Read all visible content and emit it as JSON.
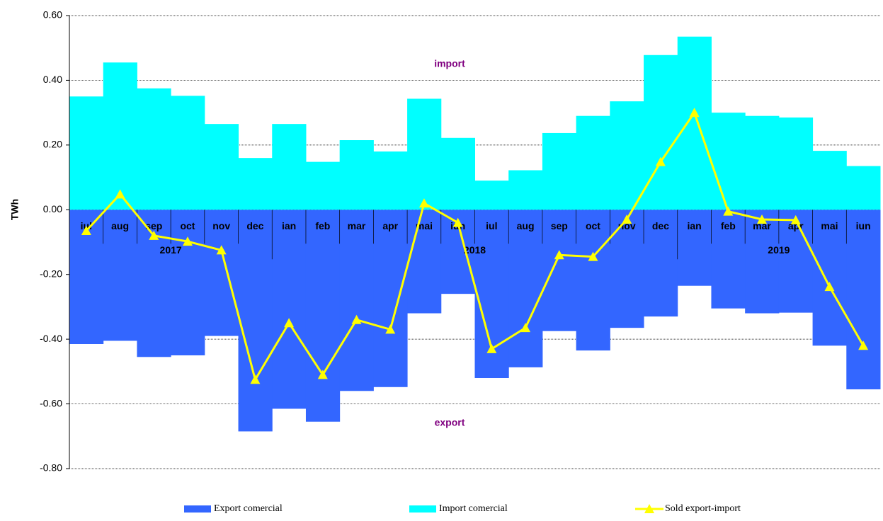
{
  "chart_data": {
    "type": "bar_line",
    "y_label": "TWh",
    "categories": [
      "iul",
      "aug",
      "sep",
      "oct",
      "nov",
      "dec",
      "ian",
      "feb",
      "mar",
      "apr",
      "mai",
      "iun",
      "iul",
      "aug",
      "sep",
      "oct",
      "nov",
      "dec",
      "ian",
      "feb",
      "mar",
      "apr",
      "mai",
      "iun"
    ],
    "category_years": [
      "2017",
      "2017",
      "2017",
      "2017",
      "2017",
      "2017",
      "2018",
      "2018",
      "2018",
      "2018",
      "2018",
      "2018",
      "2018",
      "2018",
      "2018",
      "2018",
      "2018",
      "2018",
      "2019",
      "2019",
      "2019",
      "2019",
      "2019",
      "2019"
    ],
    "series": [
      {
        "name": "Export comercial",
        "color": "#3366ff",
        "kind": "bar",
        "values": [
          -0.415,
          -0.405,
          -0.455,
          -0.45,
          -0.39,
          -0.685,
          -0.615,
          -0.655,
          -0.56,
          -0.548,
          -0.32,
          -0.26,
          -0.52,
          -0.487,
          -0.375,
          -0.435,
          -0.365,
          -0.33,
          -0.235,
          -0.305,
          -0.32,
          -0.318,
          -0.42,
          -0.555
        ]
      },
      {
        "name": "Import comercial",
        "color": "#00ffff",
        "kind": "bar",
        "values": [
          0.35,
          0.455,
          0.375,
          0.352,
          0.265,
          0.16,
          0.265,
          0.148,
          0.215,
          0.18,
          0.343,
          0.222,
          0.09,
          0.122,
          0.237,
          0.29,
          0.335,
          0.478,
          0.535,
          0.3,
          0.29,
          0.285,
          0.182,
          0.135
        ]
      },
      {
        "name": "Sold export-import",
        "color": "#ffff00",
        "kind": "line",
        "values": [
          -0.065,
          0.048,
          -0.08,
          -0.098,
          -0.125,
          -0.525,
          -0.35,
          -0.51,
          -0.34,
          -0.37,
          0.02,
          -0.04,
          -0.43,
          -0.365,
          -0.14,
          -0.145,
          -0.03,
          0.148,
          0.3,
          -0.005,
          -0.03,
          -0.032,
          -0.238,
          -0.42
        ]
      }
    ],
    "annotations": [
      {
        "text": "import",
        "value": 0.45
      },
      {
        "text": "export",
        "value": -0.66
      }
    ],
    "annotation_color": "#800080",
    "ylim": [
      -0.8,
      0.6
    ],
    "yticks": [
      {
        "value": -0.8,
        "label": "-0.80"
      },
      {
        "value": -0.6,
        "label": "-0.60"
      },
      {
        "value": -0.4,
        "label": "-0.40"
      },
      {
        "value": -0.2,
        "label": "-0.20"
      },
      {
        "value": 0,
        "label": "0.00"
      },
      {
        "value": 0.2,
        "label": "0.20"
      },
      {
        "value": 0.4,
        "label": "0.40"
      },
      {
        "value": 0.6,
        "label": "0.60"
      }
    ],
    "grid": true
  }
}
